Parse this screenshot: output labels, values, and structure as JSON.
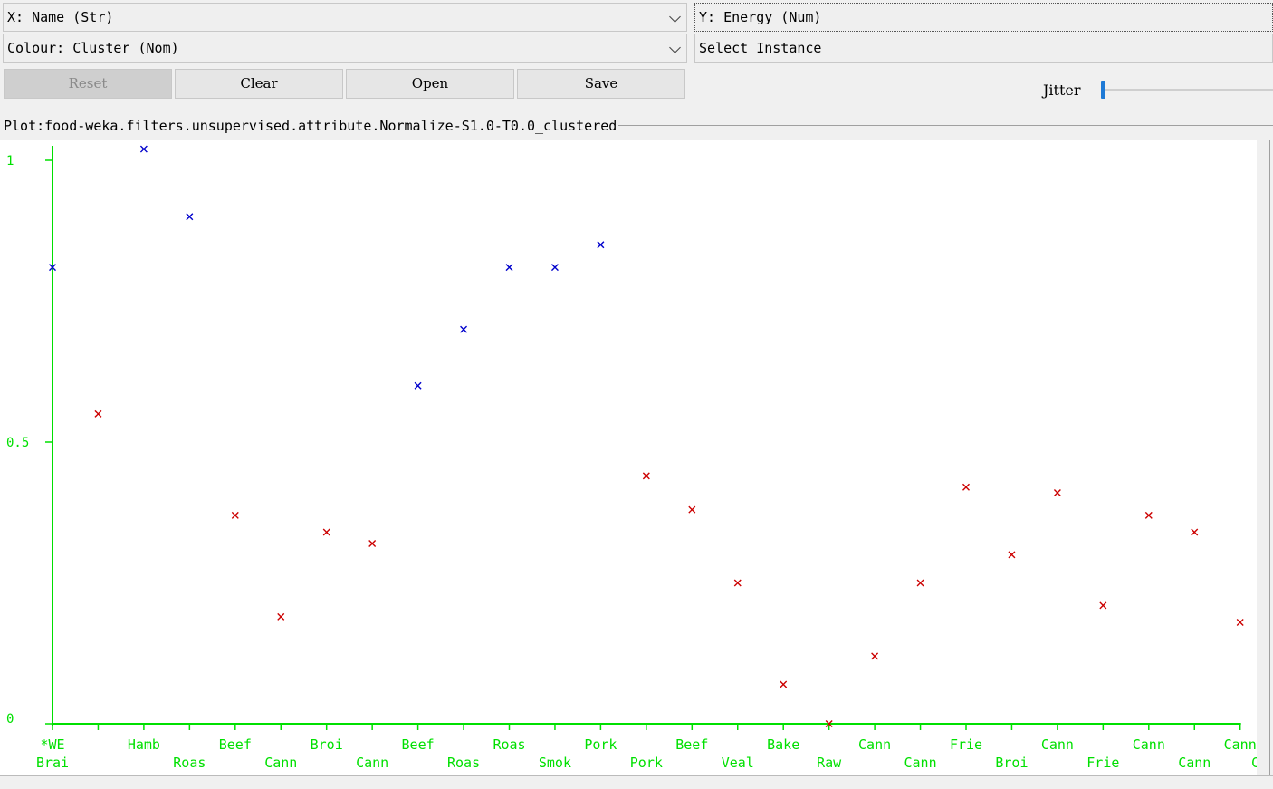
{
  "x_select": {
    "label": "X: Name (Str)"
  },
  "y_select": {
    "label": "Y: Energy (Num)"
  },
  "colour_select": {
    "label": "Colour: Cluster (Nom)"
  },
  "instance_select": {
    "label": "Select Instance"
  },
  "buttons": {
    "reset": "Reset",
    "clear": "Clear",
    "open": "Open",
    "save": "Save"
  },
  "jitter": {
    "label": "Jitter",
    "value": 0
  },
  "plot": {
    "title": "Plot:food-weka.filters.unsupervised.attribute.Normalize-S1.0-T0.0_clustered"
  },
  "colors": {
    "axis": "#00e000",
    "cluster0": "#0000cc",
    "cluster1": "#cc0000"
  },
  "chart_data": {
    "type": "scatter",
    "xlabel": "",
    "ylabel": "",
    "ylim": [
      0,
      1
    ],
    "y_ticks": [
      "0",
      "0.5",
      "1"
    ],
    "x_tick_labels_top": [
      "*WE",
      "Hamb",
      "Beef",
      "Broi",
      "Beef",
      "Roas",
      "Pork",
      "Beef",
      "Bake",
      "Cann",
      "Frie",
      "Cann",
      "Cann",
      "Cann"
    ],
    "x_tick_labels_bottom": [
      "Brai",
      "Roas",
      "Cann",
      "Cann",
      "Roas",
      "Smok",
      "Pork",
      "Veal",
      "Raw",
      "Cann",
      "Broi",
      "Frie",
      "Cann",
      "Cann"
    ],
    "points": [
      {
        "x": 0,
        "y": 0.81,
        "cluster": 0
      },
      {
        "x": 1,
        "y": 0.55,
        "cluster": 1
      },
      {
        "x": 2,
        "y": 1.02,
        "cluster": 0
      },
      {
        "x": 3,
        "y": 0.9,
        "cluster": 0
      },
      {
        "x": 4,
        "y": 0.37,
        "cluster": 1
      },
      {
        "x": 5,
        "y": 0.19,
        "cluster": 1
      },
      {
        "x": 6,
        "y": 0.34,
        "cluster": 1
      },
      {
        "x": 7,
        "y": 0.32,
        "cluster": 1
      },
      {
        "x": 8,
        "y": 0.6,
        "cluster": 0
      },
      {
        "x": 9,
        "y": 0.7,
        "cluster": 0
      },
      {
        "x": 10,
        "y": 0.81,
        "cluster": 0
      },
      {
        "x": 11,
        "y": 0.81,
        "cluster": 0
      },
      {
        "x": 12,
        "y": 0.85,
        "cluster": 0
      },
      {
        "x": 13,
        "y": 0.44,
        "cluster": 1
      },
      {
        "x": 14,
        "y": 0.38,
        "cluster": 1
      },
      {
        "x": 15,
        "y": 0.25,
        "cluster": 1
      },
      {
        "x": 16,
        "y": 0.07,
        "cluster": 1
      },
      {
        "x": 17,
        "y": 0.0,
        "cluster": 1
      },
      {
        "x": 18,
        "y": 0.12,
        "cluster": 1
      },
      {
        "x": 19,
        "y": 0.25,
        "cluster": 1
      },
      {
        "x": 20,
        "y": 0.42,
        "cluster": 1
      },
      {
        "x": 21,
        "y": 0.3,
        "cluster": 1
      },
      {
        "x": 22,
        "y": 0.41,
        "cluster": 1
      },
      {
        "x": 23,
        "y": 0.21,
        "cluster": 1
      },
      {
        "x": 24,
        "y": 0.37,
        "cluster": 1
      },
      {
        "x": 25,
        "y": 0.34,
        "cluster": 1
      },
      {
        "x": 26,
        "y": 0.18,
        "cluster": 1
      }
    ]
  }
}
